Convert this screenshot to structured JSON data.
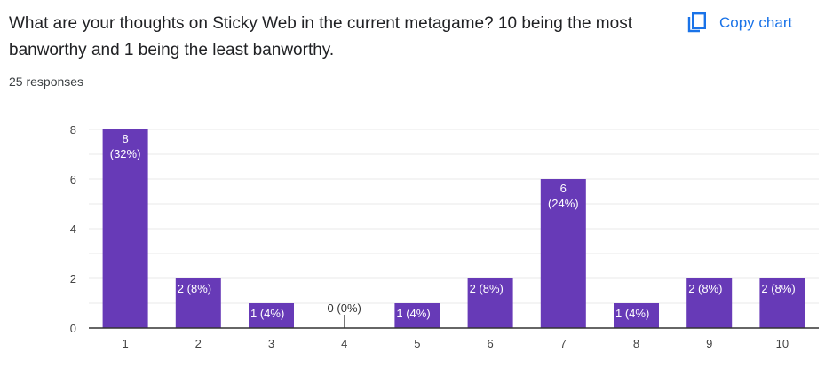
{
  "header": {
    "question": "What are your thoughts on Sticky Web in the current metagame? 10 being the most banworthy and 1 being the least banworthy.",
    "responses": "25 responses",
    "copy_label": "Copy chart",
    "copy_icon": "copy-icon"
  },
  "colors": {
    "bar": "#673ab7",
    "grid": "#e8e8e8",
    "axis": "#333333",
    "accent": "#1a73e8"
  },
  "chart_data": {
    "type": "bar",
    "title": "",
    "xlabel": "",
    "ylabel": "",
    "ylim": [
      0,
      8
    ],
    "yticks": [
      0,
      2,
      4,
      6,
      8
    ],
    "grid": true,
    "categories": [
      "1",
      "2",
      "3",
      "4",
      "5",
      "6",
      "7",
      "8",
      "9",
      "10"
    ],
    "values": [
      8,
      2,
      1,
      0,
      1,
      2,
      6,
      1,
      2,
      2
    ],
    "labels": [
      [
        "8",
        "(32%)"
      ],
      [
        "2 (8%)"
      ],
      [
        "1 (4%)"
      ],
      [
        "0 (0%)"
      ],
      [
        "1 (4%)"
      ],
      [
        "2 (8%)"
      ],
      [
        "6",
        "(24%)"
      ],
      [
        "1 (4%)"
      ],
      [
        "2 (8%)"
      ],
      [
        "2 (8%)"
      ]
    ]
  }
}
